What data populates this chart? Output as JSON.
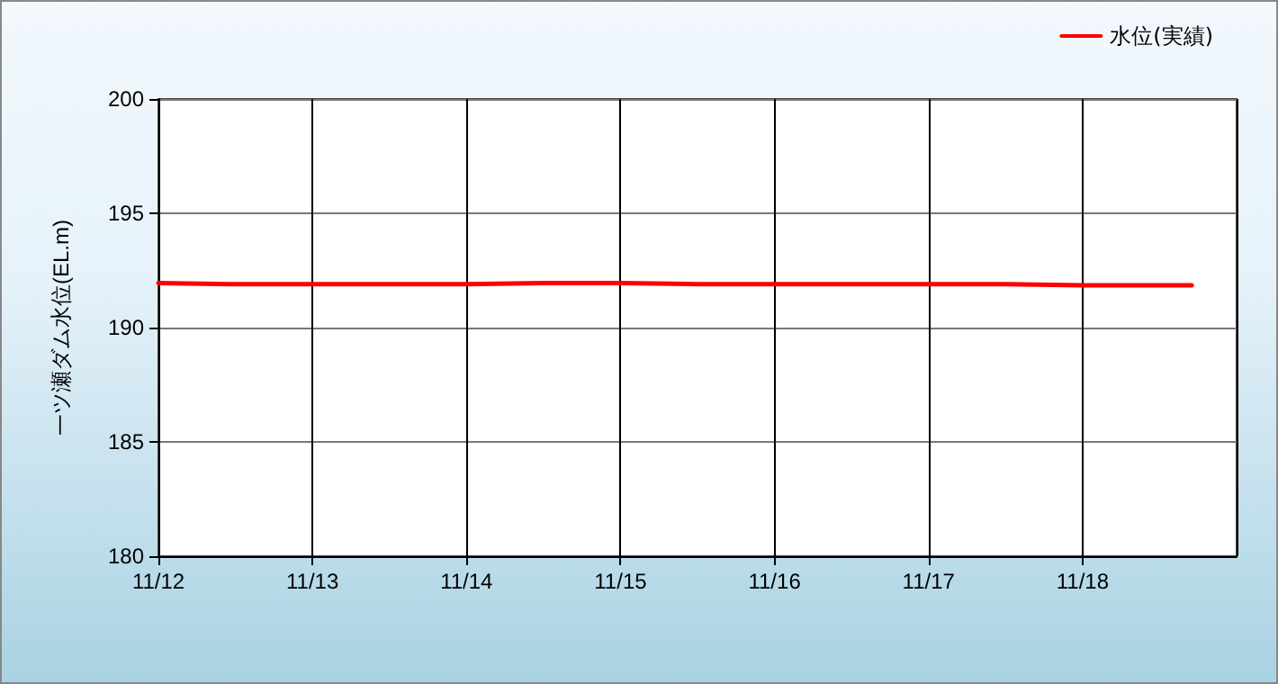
{
  "chart_data": {
    "type": "line",
    "ylabel": "一ツ瀬ダム水位(EL.m)",
    "x": [
      "--11-12T00:00",
      "--11-12T12:00",
      "--11-13T00:00",
      "--11-13T12:00",
      "--11-14T00:00",
      "--11-14T12:00",
      "--11-15T00:00",
      "--11-15T12:00",
      "--11-16T00:00",
      "--11-16T12:00",
      "--11-17T00:00",
      "--11-17T12:00",
      "--11-18T00:00",
      "--11-18T12:00",
      "--11-18T17:00"
    ],
    "series": [
      {
        "name": "水位(実績)",
        "color": "#ff0000",
        "values": [
          191.95,
          191.9,
          191.9,
          191.9,
          191.9,
          191.95,
          191.95,
          191.9,
          191.9,
          191.9,
          191.9,
          191.9,
          191.85,
          191.85,
          191.85
        ]
      }
    ],
    "xlim": [
      "--11-12T00:00",
      "--11-19T00:00"
    ],
    "xticks": [
      {
        "value": "--11-12T00:00",
        "label": "11/12"
      },
      {
        "value": "--11-13T00:00",
        "label": "11/13"
      },
      {
        "value": "--11-14T00:00",
        "label": "11/14"
      },
      {
        "value": "--11-15T00:00",
        "label": "11/15"
      },
      {
        "value": "--11-16T00:00",
        "label": "11/16"
      },
      {
        "value": "--11-17T00:00",
        "label": "11/17"
      },
      {
        "value": "--11-18T00:00",
        "label": "11/18"
      }
    ],
    "ylim": [
      180,
      200
    ],
    "yticks": [
      180,
      185,
      190,
      195,
      200
    ],
    "grid": true,
    "legend": "top right",
    "marker": "none",
    "line_style": "solid"
  }
}
